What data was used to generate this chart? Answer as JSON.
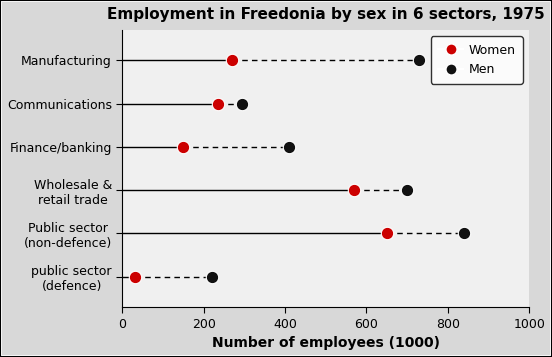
{
  "title": "Employment in Freedonia by sex in 6 sectors, 1975",
  "xlabel": "Number of employees (1000)",
  "categories": [
    "Manufacturing",
    "Communications",
    "Finance/banking",
    "Wholesale &\nretail trade",
    "Public sector\n(non-defence)",
    "public sector\n(defence)"
  ],
  "women_values": [
    270,
    235,
    150,
    570,
    650,
    30
  ],
  "men_values": [
    730,
    295,
    410,
    700,
    840,
    220
  ],
  "xlim": [
    0,
    1000
  ],
  "xticks": [
    0,
    200,
    400,
    600,
    800,
    1000
  ],
  "women_color": "#cc0000",
  "men_color": "#111111",
  "dot_size": 80,
  "background_color": "#d8d8d8",
  "plot_bg_color": "#f0f0f0",
  "title_fontsize": 11,
  "label_fontsize": 9,
  "axis_label_fontsize": 10,
  "tick_fontsize": 9
}
